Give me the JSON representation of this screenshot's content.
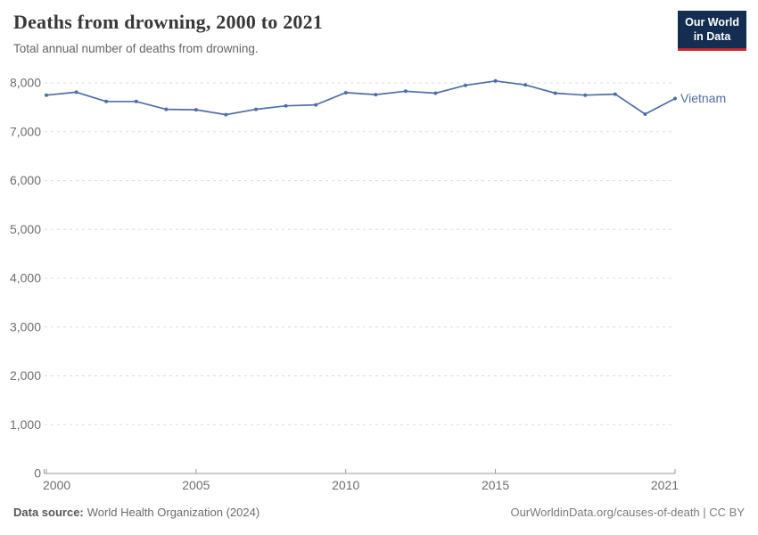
{
  "header": {
    "title": "Deaths from drowning, 2000 to 2021",
    "subtitle": "Total annual number of deaths from drowning.",
    "logo": {
      "line1": "Our World",
      "line2": "in Data",
      "bg_color": "#142d50",
      "accent_color": "#c9232c"
    }
  },
  "chart_data": {
    "type": "line",
    "title": "Deaths from drowning, 2000 to 2021",
    "xlabel": "",
    "ylabel": "",
    "x": [
      2000,
      2001,
      2002,
      2003,
      2004,
      2005,
      2006,
      2007,
      2008,
      2009,
      2010,
      2011,
      2012,
      2013,
      2014,
      2015,
      2016,
      2017,
      2018,
      2019,
      2020,
      2021
    ],
    "series": [
      {
        "name": "Vietnam",
        "color": "#4f6ea7",
        "values": [
          7750,
          7810,
          7620,
          7620,
          7460,
          7450,
          7350,
          7460,
          7530,
          7550,
          7800,
          7760,
          7830,
          7790,
          7950,
          8040,
          7960,
          7790,
          7750,
          7770,
          7360,
          7680
        ]
      }
    ],
    "ylim": [
      0,
      8000
    ],
    "yticks": [
      0,
      1000,
      2000,
      3000,
      4000,
      5000,
      6000,
      7000,
      8000
    ],
    "xticks": [
      2000,
      2005,
      2010,
      2015,
      2021
    ],
    "grid": "horizontal-dashed",
    "legend": "series-end-label",
    "grid_color": "#dcdcdc",
    "axis_color": "#9a9a9a"
  },
  "footer": {
    "datasource_label": "Data source:",
    "datasource_value": "World Health Organization (2024)",
    "right_text": "OurWorldinData.org/causes-of-death | CC BY"
  }
}
